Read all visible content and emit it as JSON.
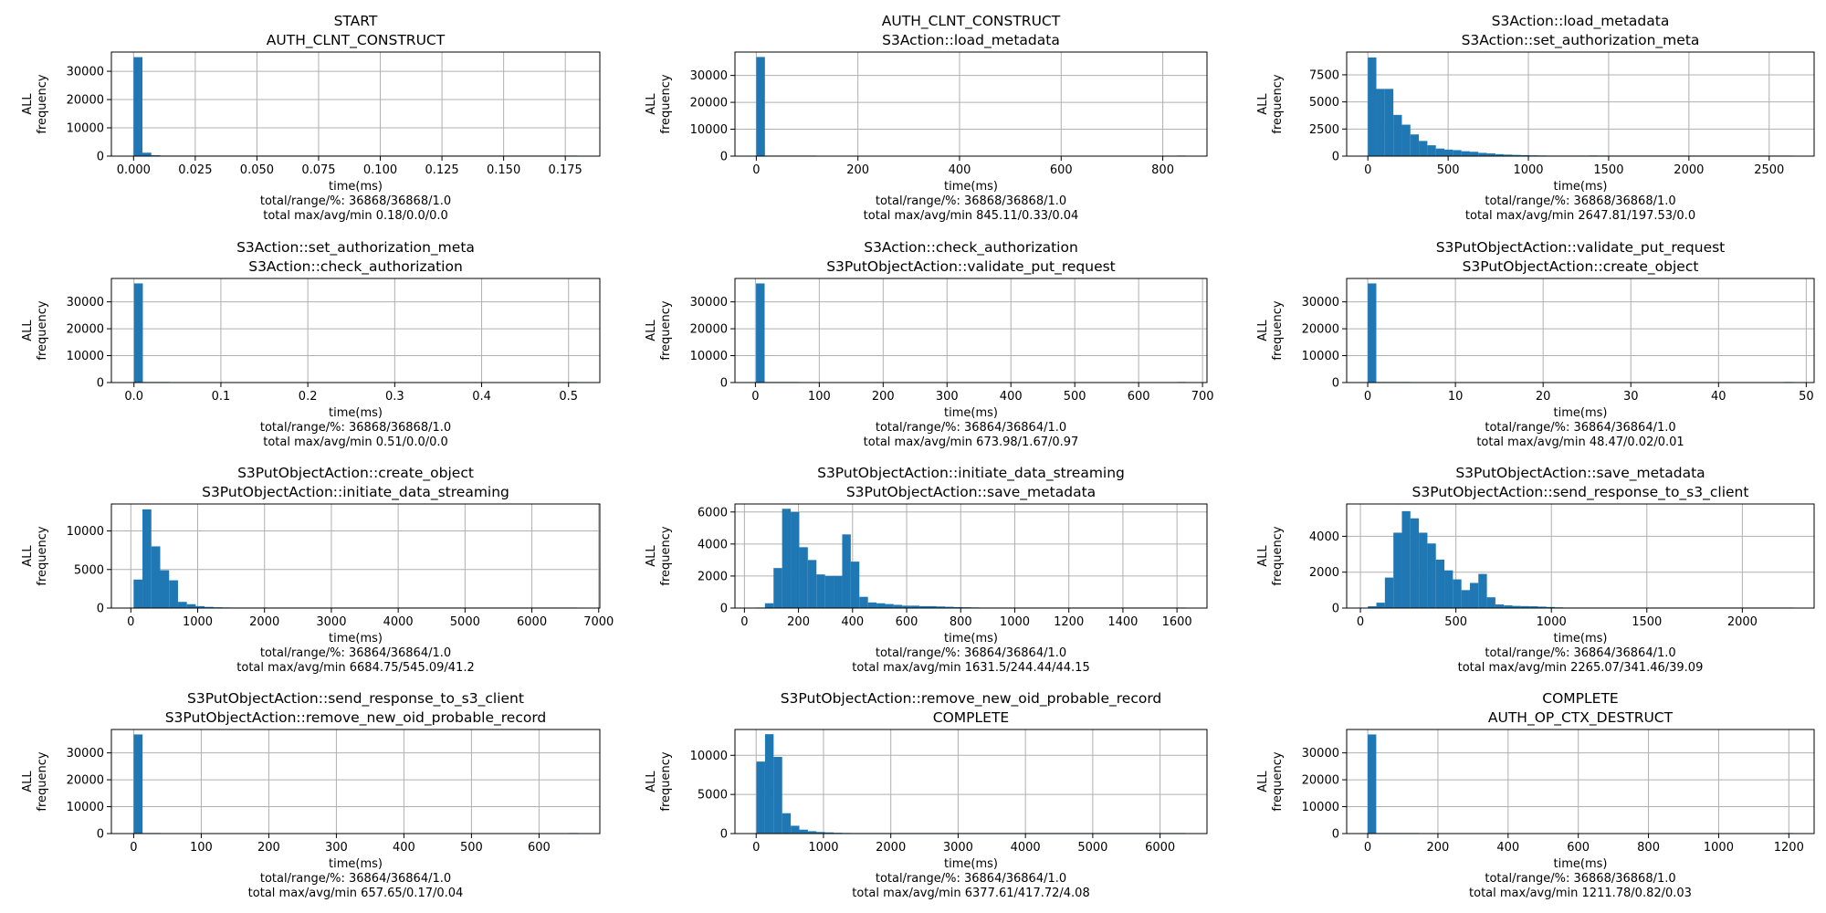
{
  "figure": {
    "bar_color": "#1f77b4",
    "grid_color": "#b0b0b0",
    "axis_color": "#000000"
  },
  "chart_data": [
    {
      "type": "bar",
      "title": [
        "START",
        "AUTH_CLNT_CONSTRUCT"
      ],
      "xlabel": "time(ms)",
      "ylabel": [
        "ALL",
        "frequency"
      ],
      "footer": [
        "total/range/%: 36868/36868/1.0",
        "total max/avg/min 0.18/0.0/0.0"
      ],
      "xlim": [
        -0.009,
        0.189
      ],
      "ylim": [
        0,
        36800
      ],
      "xticks": [
        0.0,
        0.025,
        0.05,
        0.075,
        0.1,
        0.125,
        0.15,
        0.175
      ],
      "xtick_labels": [
        "0.000",
        "0.025",
        "0.050",
        "0.075",
        "0.100",
        "0.125",
        "0.150",
        "0.175"
      ],
      "yticks": [
        0,
        10000,
        20000,
        30000
      ],
      "ytick_labels": [
        "0",
        "10000",
        "20000",
        "30000"
      ],
      "bin_start": 0.0,
      "bin_width": 0.0036,
      "values": [
        35000,
        1200,
        300,
        150,
        60,
        30,
        15,
        8,
        5,
        3,
        2,
        1,
        1,
        1,
        1,
        1,
        1,
        1,
        1,
        1,
        1,
        1,
        1,
        1,
        1,
        1,
        1,
        1,
        1,
        1,
        1,
        1,
        1,
        1,
        1,
        1,
        1,
        1,
        1,
        1,
        1,
        1,
        1,
        1,
        1,
        1,
        1,
        1,
        1,
        1
      ]
    },
    {
      "type": "bar",
      "title": [
        "AUTH_CLNT_CONSTRUCT",
        "S3Action::load_metadata"
      ],
      "xlabel": "time(ms)",
      "ylabel": [
        "ALL",
        "frequency"
      ],
      "footer": [
        "total/range/%: 36868/36868/1.0",
        "total max/avg/min 845.11/0.33/0.04"
      ],
      "xlim": [
        -42,
        887
      ],
      "ylim": [
        0,
        38700
      ],
      "xticks": [
        0,
        200,
        400,
        600,
        800
      ],
      "xtick_labels": [
        "0",
        "200",
        "400",
        "600",
        "800"
      ],
      "yticks": [
        0,
        10000,
        20000,
        30000
      ],
      "ytick_labels": [
        "0",
        "10000",
        "20000",
        "30000"
      ],
      "bin_start": 0.04,
      "bin_width": 16.9,
      "values": [
        36860,
        4,
        1,
        1,
        1,
        1,
        1,
        0,
        0,
        0,
        0,
        0,
        0,
        0,
        0,
        0,
        0,
        0,
        0,
        0,
        0,
        0,
        0,
        0,
        0,
        0,
        0,
        0,
        0,
        0,
        0,
        0,
        0,
        0,
        0,
        0,
        0,
        0,
        0,
        0,
        0,
        0,
        0,
        0,
        0,
        0,
        0,
        0,
        0,
        1
      ]
    },
    {
      "type": "bar",
      "title": [
        "S3Action::load_metadata",
        "S3Action::set_authorization_meta"
      ],
      "xlabel": "time(ms)",
      "ylabel": [
        "ALL",
        "frequency"
      ],
      "footer": [
        "total/range/%: 36868/36868/1.0",
        "total max/avg/min 2647.81/197.53/0.0"
      ],
      "xlim": [
        -132,
        2780
      ],
      "ylim": [
        0,
        9600
      ],
      "xticks": [
        0,
        500,
        1000,
        1500,
        2000,
        2500
      ],
      "xtick_labels": [
        "0",
        "500",
        "1000",
        "1500",
        "2000",
        "2500"
      ],
      "yticks": [
        0,
        2500,
        5000,
        7500
      ],
      "ytick_labels": [
        "0",
        "2500",
        "5000",
        "7500"
      ],
      "bin_start": 0.0,
      "bin_width": 52.96,
      "values": [
        9100,
        6200,
        6200,
        3800,
        2900,
        2000,
        1400,
        1000,
        700,
        600,
        550,
        450,
        400,
        300,
        250,
        180,
        140,
        110,
        90,
        70,
        60,
        50,
        40,
        35,
        30,
        25,
        60,
        20,
        15,
        10,
        5,
        5,
        5,
        5,
        5,
        5,
        5,
        5,
        5,
        5,
        1,
        1,
        1,
        1,
        1,
        1,
        1,
        1,
        1,
        1
      ]
    },
    {
      "type": "bar",
      "title": [
        "S3Action::set_authorization_meta",
        "S3Action::check_authorization"
      ],
      "xlabel": "time(ms)",
      "ylabel": [
        "ALL",
        "frequency"
      ],
      "footer": [
        "total/range/%: 36868/36868/1.0",
        "total max/avg/min 0.51/0.0/0.0"
      ],
      "xlim": [
        -0.026,
        0.536
      ],
      "ylim": [
        0,
        38700
      ],
      "xticks": [
        0.0,
        0.1,
        0.2,
        0.3,
        0.4,
        0.5
      ],
      "xtick_labels": [
        "0.0",
        "0.1",
        "0.2",
        "0.3",
        "0.4",
        "0.5"
      ],
      "yticks": [
        0,
        10000,
        20000,
        30000
      ],
      "ytick_labels": [
        "0",
        "10000",
        "20000",
        "30000"
      ],
      "bin_start": 0.0,
      "bin_width": 0.0102,
      "values": [
        36860,
        4,
        1,
        1,
        0,
        0,
        0,
        0,
        0,
        0,
        0,
        0,
        0,
        0,
        0,
        0,
        0,
        0,
        0,
        0,
        0,
        0,
        0,
        0,
        0,
        0,
        0,
        0,
        0,
        0,
        0,
        0,
        0,
        0,
        0,
        0,
        0,
        0,
        0,
        0,
        0,
        0,
        0,
        0,
        0,
        0,
        0,
        0,
        0,
        1
      ]
    },
    {
      "type": "bar",
      "title": [
        "S3Action::check_authorization",
        "S3PutObjectAction::validate_put_request"
      ],
      "xlabel": "time(ms)",
      "ylabel": [
        "ALL",
        "frequency"
      ],
      "footer": [
        "total/range/%: 36864/36864/1.0",
        "total max/avg/min 673.98/1.67/0.97"
      ],
      "xlim": [
        -32,
        707
      ],
      "ylim": [
        0,
        38700
      ],
      "xticks": [
        0,
        100,
        200,
        300,
        400,
        500,
        600,
        700
      ],
      "xtick_labels": [
        "0",
        "100",
        "200",
        "300",
        "400",
        "500",
        "600",
        "700"
      ],
      "yticks": [
        0,
        10000,
        20000,
        30000
      ],
      "ytick_labels": [
        "0",
        "10000",
        "20000",
        "30000"
      ],
      "bin_start": 0.97,
      "bin_width": 13.46,
      "values": [
        36850,
        8,
        2,
        1,
        1,
        0,
        0,
        0,
        0,
        0,
        0,
        0,
        0,
        0,
        0,
        0,
        0,
        0,
        0,
        0,
        0,
        0,
        0,
        0,
        0,
        0,
        0,
        0,
        0,
        0,
        0,
        0,
        0,
        0,
        0,
        0,
        0,
        0,
        0,
        0,
        0,
        0,
        0,
        0,
        0,
        0,
        0,
        0,
        0,
        1
      ]
    },
    {
      "type": "bar",
      "title": [
        "S3PutObjectAction::validate_put_request",
        "S3PutObjectAction::create_object"
      ],
      "xlabel": "time(ms)",
      "ylabel": [
        "ALL",
        "frequency"
      ],
      "footer": [
        "total/range/%: 36864/36864/1.0",
        "total max/avg/min 48.47/0.02/0.01"
      ],
      "xlim": [
        -2.4,
        50.9
      ],
      "ylim": [
        0,
        38700
      ],
      "xticks": [
        0,
        10,
        20,
        30,
        40,
        50
      ],
      "xtick_labels": [
        "0",
        "10",
        "20",
        "30",
        "40",
        "50"
      ],
      "yticks": [
        0,
        10000,
        20000,
        30000
      ],
      "ytick_labels": [
        "0",
        "10000",
        "20000",
        "30000"
      ],
      "bin_start": 0.01,
      "bin_width": 0.969,
      "values": [
        36855,
        5,
        1,
        1,
        1,
        0,
        0,
        0,
        0,
        0,
        0,
        0,
        0,
        0,
        0,
        0,
        0,
        0,
        0,
        0,
        0,
        0,
        0,
        0,
        0,
        0,
        0,
        0,
        0,
        0,
        0,
        0,
        0,
        0,
        0,
        0,
        0,
        0,
        0,
        0,
        0,
        0,
        0,
        0,
        0,
        0,
        0,
        0,
        0,
        1
      ]
    },
    {
      "type": "bar",
      "title": [
        "S3PutObjectAction::create_object",
        "S3PutObjectAction::initiate_data_streaming"
      ],
      "xlabel": "time(ms)",
      "ylabel": [
        "ALL",
        "frequency"
      ],
      "footer": [
        "total/range/%: 36864/36864/1.0",
        "total max/avg/min 6684.75/545.09/41.2"
      ],
      "xlim": [
        -291,
        7017
      ],
      "ylim": [
        0,
        13500
      ],
      "xticks": [
        0,
        1000,
        2000,
        3000,
        4000,
        5000,
        6000,
        7000
      ],
      "xtick_labels": [
        "0",
        "1000",
        "2000",
        "3000",
        "4000",
        "5000",
        "6000",
        "7000"
      ],
      "yticks": [
        0,
        5000,
        10000
      ],
      "ytick_labels": [
        "0",
        "5000",
        "10000"
      ],
      "bin_start": 41.2,
      "bin_width": 132.87,
      "values": [
        3700,
        12800,
        8000,
        4900,
        3600,
        800,
        500,
        250,
        150,
        100,
        80,
        60,
        60,
        50,
        40,
        40,
        30,
        30,
        30,
        30,
        20,
        20,
        20,
        15,
        15,
        10,
        10,
        10,
        10,
        10,
        5,
        5,
        5,
        5,
        5,
        5,
        5,
        5,
        3,
        3,
        3,
        3,
        2,
        2,
        2,
        2,
        2,
        2,
        1,
        1
      ]
    },
    {
      "type": "bar",
      "title": [
        "S3PutObjectAction::initiate_data_streaming",
        "S3PutObjectAction::save_metadata"
      ],
      "xlabel": "time(ms)",
      "ylabel": [
        "ALL",
        "frequency"
      ],
      "footer": [
        "total/range/%: 36864/36864/1.0",
        "total max/avg/min 1631.5/244.44/44.15"
      ],
      "xlim": [
        -35,
        1711
      ],
      "ylim": [
        0,
        6500
      ],
      "xticks": [
        0,
        200,
        400,
        600,
        800,
        1000,
        1200,
        1400,
        1600
      ],
      "xtick_labels": [
        "0",
        "200",
        "400",
        "600",
        "800",
        "1000",
        "1200",
        "1400",
        "1600"
      ],
      "yticks": [
        0,
        2000,
        4000,
        6000
      ],
      "ytick_labels": [
        "0",
        "2000",
        "4000",
        "6000"
      ],
      "bin_start": 44.15,
      "bin_width": 31.75,
      "values": [
        10,
        300,
        2500,
        6200,
        6000,
        3800,
        3000,
        2100,
        2000,
        2000,
        4600,
        2900,
        700,
        350,
        300,
        250,
        200,
        150,
        150,
        120,
        120,
        100,
        80,
        60,
        50,
        40,
        30,
        25,
        20,
        15,
        10,
        10,
        8,
        6,
        5,
        4,
        3,
        3,
        2,
        2,
        2,
        1,
        1,
        1,
        1,
        1,
        1,
        1,
        1,
        1
      ]
    },
    {
      "type": "bar",
      "title": [
        "S3PutObjectAction::save_metadata",
        "S3PutObjectAction::send_response_to_s3_client"
      ],
      "xlabel": "time(ms)",
      "ylabel": [
        "ALL",
        "frequency"
      ],
      "footer": [
        "total/range/%: 36864/36864/1.0",
        "total max/avg/min 2265.07/341.46/39.09"
      ],
      "xlim": [
        -72,
        2376
      ],
      "ylim": [
        0,
        5800
      ],
      "xticks": [
        0,
        500,
        1000,
        1500,
        2000
      ],
      "xtick_labels": [
        "0",
        "500",
        "1000",
        "1500",
        "2000"
      ],
      "yticks": [
        0,
        2000,
        4000
      ],
      "ytick_labels": [
        "0",
        "2000",
        "4000"
      ],
      "bin_start": 39.09,
      "bin_width": 44.52,
      "values": [
        100,
        300,
        1700,
        4200,
        5400,
        5000,
        4200,
        3600,
        2700,
        2100,
        1600,
        1000,
        1400,
        1900,
        600,
        200,
        150,
        120,
        110,
        100,
        80,
        60,
        40,
        30,
        20,
        15,
        12,
        10,
        8,
        6,
        5,
        4,
        3,
        3,
        20,
        3,
        2,
        2,
        2,
        2,
        1,
        1,
        1,
        1,
        1,
        1,
        1,
        1,
        1,
        1
      ]
    },
    {
      "type": "bar",
      "title": [
        "S3PutObjectAction::send_response_to_s3_client",
        "S3PutObjectAction::remove_new_oid_probable_record"
      ],
      "xlabel": "time(ms)",
      "ylabel": [
        "ALL",
        "frequency"
      ],
      "footer": [
        "total/range/%: 36864/36864/1.0",
        "total max/avg/min 657.65/0.17/0.04"
      ],
      "xlim": [
        -33,
        690
      ],
      "ylim": [
        0,
        38700
      ],
      "xticks": [
        0,
        100,
        200,
        300,
        400,
        500,
        600
      ],
      "xtick_labels": [
        "0",
        "100",
        "200",
        "300",
        "400",
        "500",
        "600"
      ],
      "yticks": [
        0,
        10000,
        20000,
        30000
      ],
      "ytick_labels": [
        "0",
        "10000",
        "20000",
        "30000"
      ],
      "bin_start": 0.04,
      "bin_width": 13.15,
      "values": [
        36858,
        4,
        1,
        0,
        0,
        0,
        0,
        0,
        0,
        0,
        0,
        0,
        0,
        0,
        0,
        0,
        0,
        0,
        0,
        0,
        0,
        0,
        0,
        0,
        0,
        0,
        0,
        0,
        0,
        0,
        0,
        0,
        0,
        0,
        0,
        0,
        0,
        0,
        0,
        0,
        0,
        0,
        0,
        0,
        0,
        0,
        0,
        0,
        0,
        1
      ]
    },
    {
      "type": "bar",
      "title": [
        "S3PutObjectAction::remove_new_oid_probable_record",
        "COMPLETE"
      ],
      "xlabel": "time(ms)",
      "ylabel": [
        "ALL",
        "frequency"
      ],
      "footer": [
        "total/range/%: 36864/36864/1.0",
        "total max/avg/min 6377.61/417.72/4.08"
      ],
      "xlim": [
        -315,
        6697
      ],
      "ylim": [
        0,
        13300
      ],
      "xticks": [
        0,
        1000,
        2000,
        3000,
        4000,
        5000,
        6000
      ],
      "xtick_labels": [
        "0",
        "1000",
        "2000",
        "3000",
        "4000",
        "5000",
        "6000"
      ],
      "yticks": [
        0,
        5000,
        10000
      ],
      "ytick_labels": [
        "0",
        "5000",
        "10000"
      ],
      "bin_start": 4.08,
      "bin_width": 127.47,
      "values": [
        9200,
        12700,
        9800,
        2600,
        1000,
        500,
        300,
        200,
        150,
        100,
        80,
        60,
        50,
        40,
        30,
        30,
        25,
        20,
        20,
        20,
        60,
        20,
        15,
        15,
        15,
        15,
        15,
        15,
        10,
        10,
        10,
        10,
        10,
        5,
        5,
        5,
        5,
        5,
        5,
        5,
        5,
        3,
        3,
        3,
        3,
        3,
        3,
        3,
        2,
        2
      ]
    },
    {
      "type": "bar",
      "title": [
        "COMPLETE",
        "AUTH_OP_CTX_DESTRUCT"
      ],
      "xlabel": "time(ms)",
      "ylabel": [
        "ALL",
        "frequency"
      ],
      "footer": [
        "total/range/%: 36868/36868/1.0",
        "total max/avg/min 1211.78/0.82/0.03"
      ],
      "xlim": [
        -60,
        1272
      ],
      "ylim": [
        0,
        38700
      ],
      "xticks": [
        0,
        200,
        400,
        600,
        800,
        1000,
        1200
      ],
      "xtick_labels": [
        "0",
        "200",
        "400",
        "600",
        "800",
        "1000",
        "1200"
      ],
      "yticks": [
        0,
        10000,
        20000,
        30000
      ],
      "ytick_labels": [
        "0",
        "10000",
        "20000",
        "30000"
      ],
      "bin_start": 0.03,
      "bin_width": 24.23,
      "values": [
        36855,
        6,
        2,
        1,
        1,
        1,
        0,
        0,
        0,
        0,
        0,
        0,
        0,
        0,
        0,
        0,
        0,
        0,
        0,
        0,
        0,
        0,
        0,
        0,
        0,
        0,
        0,
        0,
        0,
        0,
        0,
        0,
        0,
        0,
        0,
        0,
        0,
        0,
        0,
        0,
        0,
        0,
        0,
        0,
        0,
        0,
        0,
        0,
        0,
        1
      ]
    }
  ]
}
